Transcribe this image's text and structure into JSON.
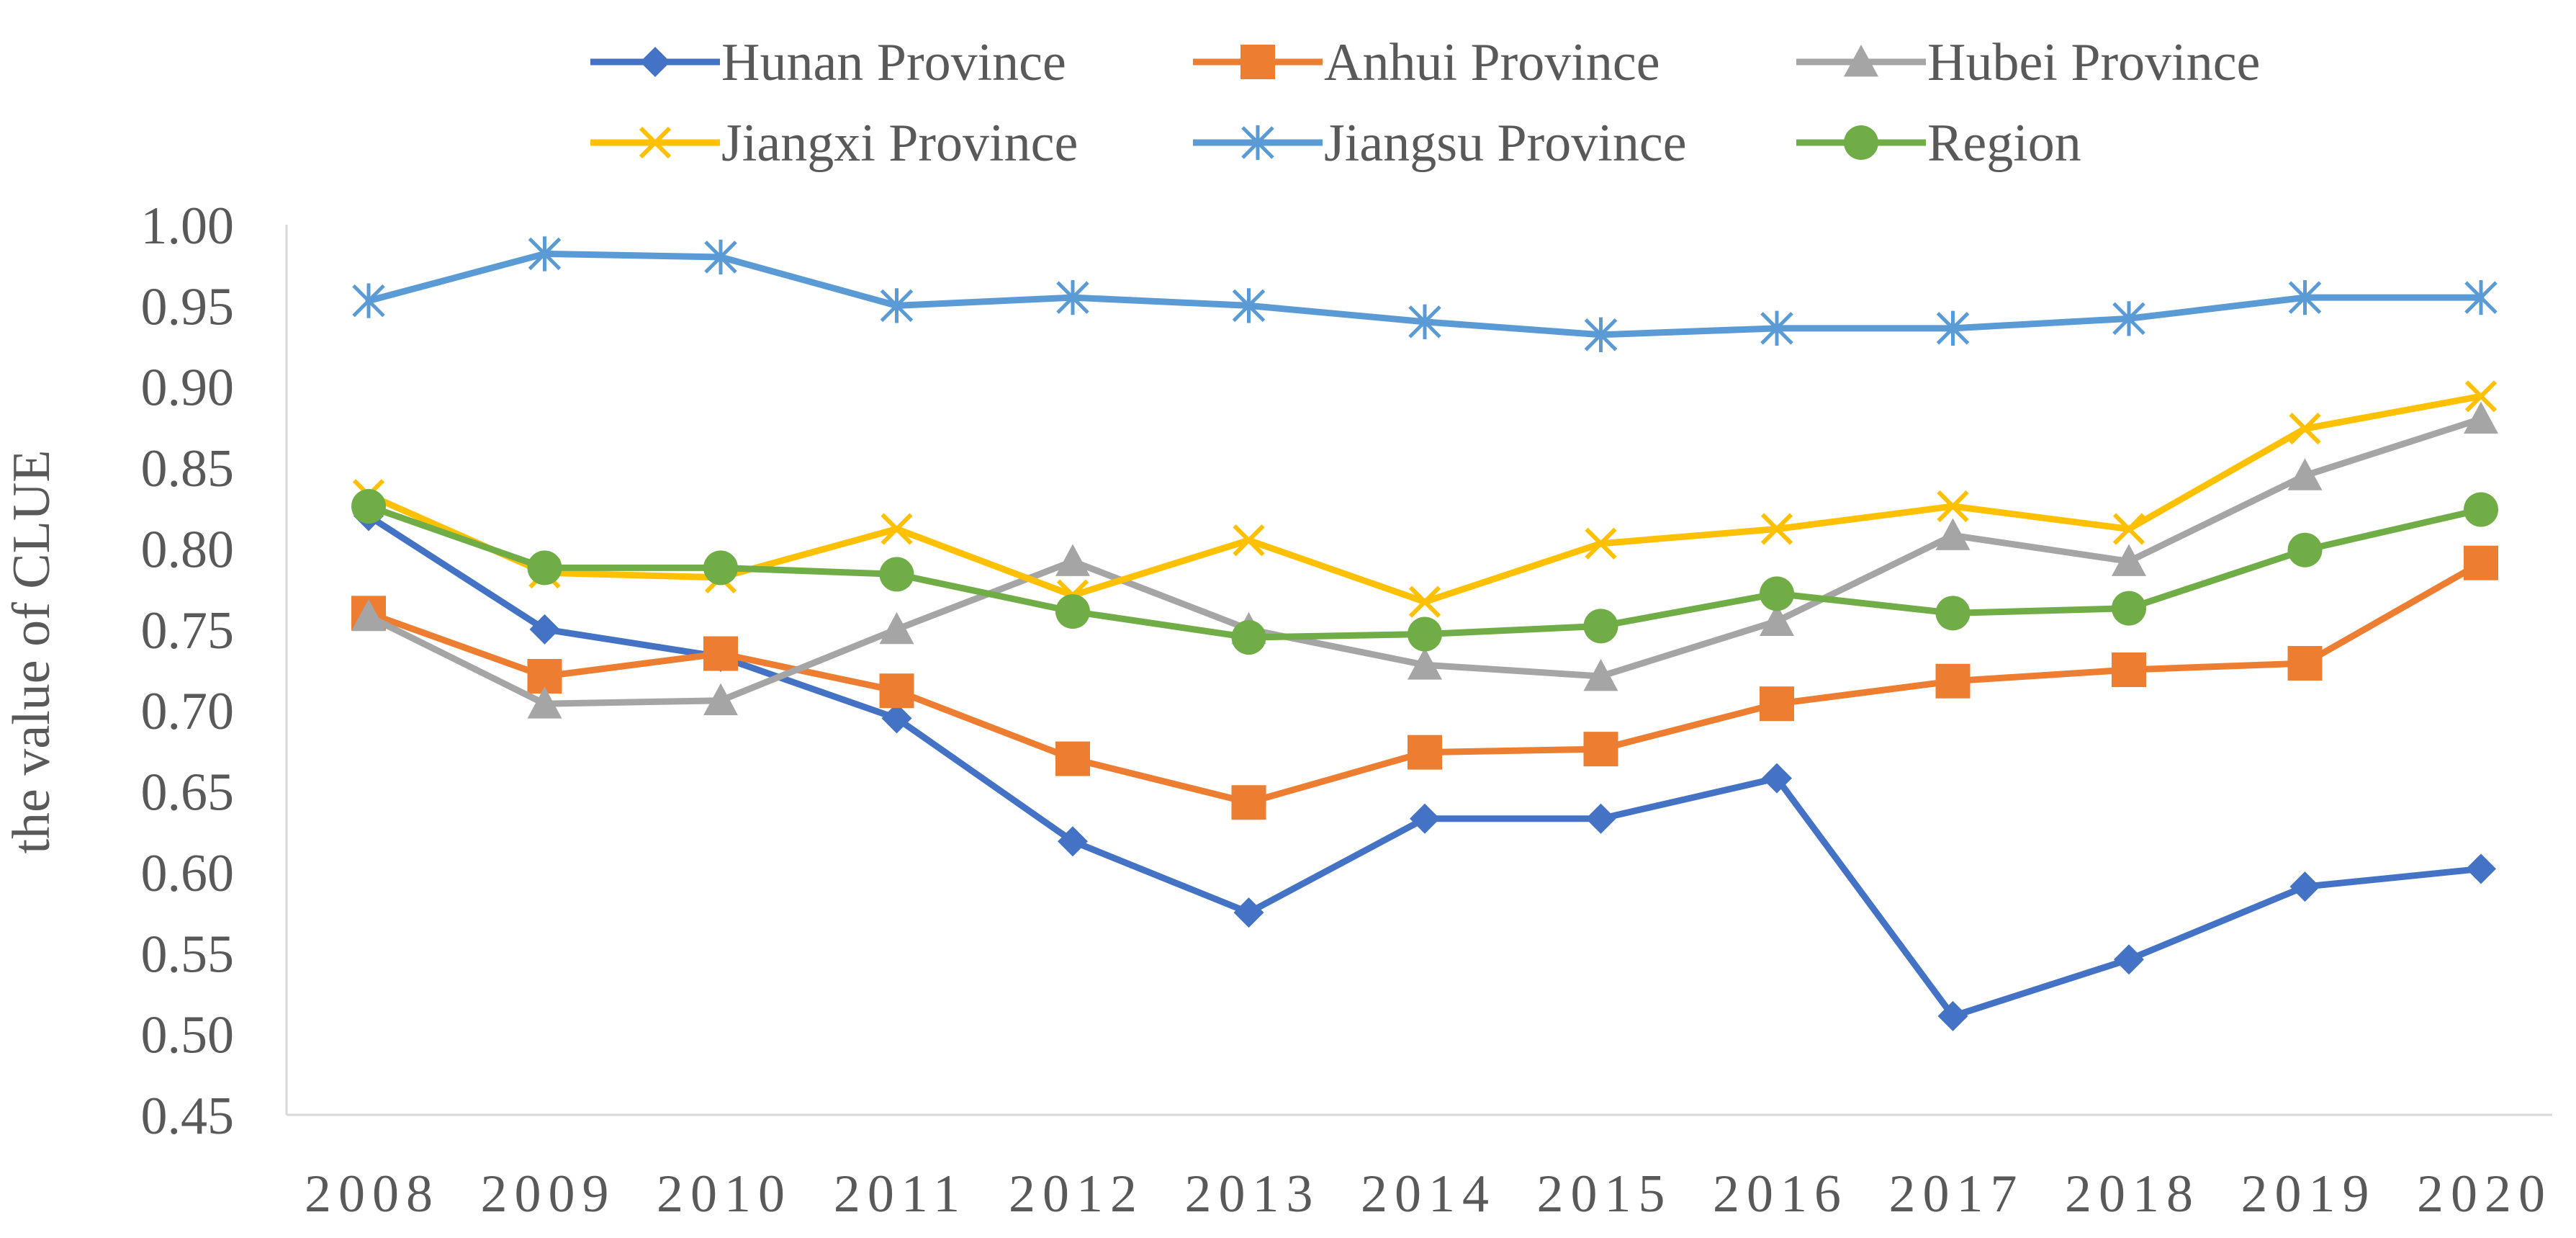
{
  "chart_data": {
    "type": "line",
    "title": "",
    "xlabel": "",
    "ylabel": "the value of CLUE",
    "x": [
      "2008",
      "2009",
      "2010",
      "2011",
      "2012",
      "2013",
      "2014",
      "2015",
      "2016",
      "2017",
      "2018",
      "2019",
      "2020"
    ],
    "ylim": [
      0.45,
      1.0
    ],
    "yticks": [
      "0.45",
      "0.50",
      "0.55",
      "0.60",
      "0.65",
      "0.70",
      "0.75",
      "0.80",
      "0.85",
      "0.90",
      "0.95",
      "1.00"
    ],
    "grid": false,
    "legend_position": "top",
    "series": [
      {
        "name": "Hunan Province",
        "color": "#4472C4",
        "marker": "diamond",
        "values": [
          0.82,
          0.75,
          0.733,
          0.695,
          0.619,
          0.575,
          0.633,
          0.633,
          0.658,
          0.511,
          0.546,
          0.591,
          0.602
        ]
      },
      {
        "name": "Anhui Province",
        "color": "#ED7D31",
        "marker": "square",
        "values": [
          0.76,
          0.721,
          0.735,
          0.712,
          0.67,
          0.643,
          0.674,
          0.676,
          0.704,
          0.718,
          0.725,
          0.729,
          0.791
        ]
      },
      {
        "name": "Hubei Province",
        "color": "#A5A5A5",
        "marker": "triangle",
        "values": [
          0.758,
          0.704,
          0.706,
          0.75,
          0.792,
          0.75,
          0.728,
          0.721,
          0.755,
          0.808,
          0.792,
          0.845,
          0.88
        ]
      },
      {
        "name": "Jiangxi Province",
        "color": "#FFC000",
        "marker": "x",
        "values": [
          0.833,
          0.785,
          0.782,
          0.812,
          0.771,
          0.805,
          0.767,
          0.803,
          0.812,
          0.826,
          0.812,
          0.874,
          0.894
        ]
      },
      {
        "name": "Jiangsu Province",
        "color": "#5B9BD5",
        "marker": "star",
        "values": [
          0.953,
          0.982,
          0.98,
          0.95,
          0.955,
          0.95,
          0.94,
          0.932,
          0.936,
          0.936,
          0.942,
          0.955,
          0.955
        ]
      },
      {
        "name": "Region",
        "color": "#70AD47",
        "marker": "circle",
        "values": [
          0.826,
          0.788,
          0.788,
          0.784,
          0.761,
          0.745,
          0.747,
          0.752,
          0.772,
          0.76,
          0.763,
          0.799,
          0.824
        ]
      }
    ]
  }
}
